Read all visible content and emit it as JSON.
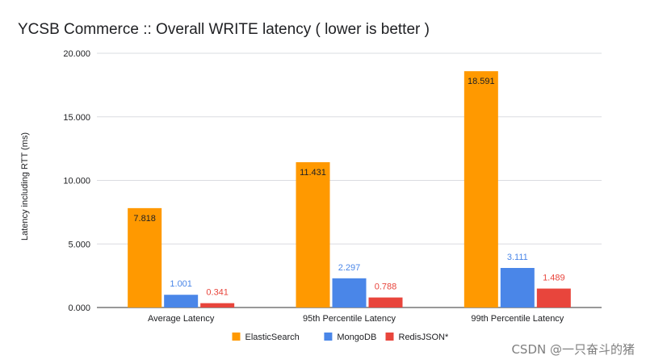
{
  "chart_data": {
    "type": "bar",
    "title": "YCSB Commerce :: Overall WRITE latency ( lower is better )",
    "ylabel": "Latency including RTT (ms)",
    "xlabel": "",
    "ylim": [
      0,
      20
    ],
    "yticks": [
      0,
      5,
      10,
      15,
      20
    ],
    "ytick_labels": [
      "0.000",
      "5.000",
      "10.000",
      "15.000",
      "20.000"
    ],
    "categories": [
      "Average Latency",
      "95th Percentile Latency",
      "99th Percentile Latency"
    ],
    "grid": true,
    "legend_position": "bottom",
    "series": [
      {
        "name": "ElasticSearch",
        "color": "#FF9900",
        "label_color": "#202124",
        "label_inside": true,
        "values": [
          7.818,
          11.431,
          18.591
        ],
        "labels": [
          "7.818",
          "11.431",
          "18.591"
        ]
      },
      {
        "name": "MongoDB",
        "color": "#4A86E8",
        "label_color": "#4A86E8",
        "label_inside": false,
        "values": [
          1.001,
          2.297,
          3.111
        ],
        "labels": [
          "1.001",
          "2.297",
          "3.111"
        ]
      },
      {
        "name": "RedisJSON*",
        "color": "#E8453C",
        "label_color": "#E8453C",
        "label_inside": false,
        "values": [
          0.341,
          0.788,
          1.489
        ],
        "labels": [
          "0.341",
          "0.788",
          "1.489"
        ]
      }
    ]
  },
  "watermark": "CSDN @一只奋斗的猪"
}
